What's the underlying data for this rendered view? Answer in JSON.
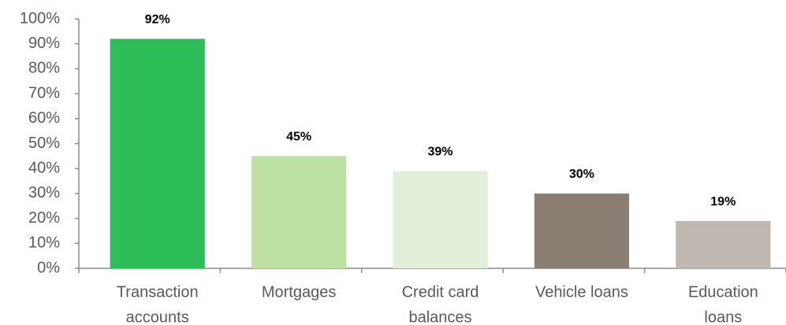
{
  "chart_data": {
    "type": "bar",
    "categories": [
      [
        "Transaction",
        "accounts"
      ],
      [
        "Mortgages"
      ],
      [
        "Credit card",
        "balances"
      ],
      [
        "Vehicle loans"
      ],
      [
        "Education",
        "loans"
      ]
    ],
    "values": [
      92,
      45,
      39,
      30,
      19
    ],
    "value_labels": [
      "92%",
      "45%",
      "39%",
      "30%",
      "19%"
    ],
    "colors": [
      "#2dbe5a",
      "#bde0a5",
      "#e2efd9",
      "#8b7f74",
      "#bfb8b0"
    ],
    "ylim": [
      0,
      100
    ],
    "yticks": [
      {
        "value": 0,
        "label": "0%"
      },
      {
        "value": 10,
        "label": "10%"
      },
      {
        "value": 20,
        "label": "20%"
      },
      {
        "value": 30,
        "label": "30%"
      },
      {
        "value": 40,
        "label": "40%"
      },
      {
        "value": 50,
        "label": "50%"
      },
      {
        "value": 60,
        "label": "60%"
      },
      {
        "value": 70,
        "label": "70%"
      },
      {
        "value": 80,
        "label": "80%"
      },
      {
        "value": 90,
        "label": "90%"
      },
      {
        "value": 100,
        "label": "100%"
      }
    ],
    "grid": false
  }
}
